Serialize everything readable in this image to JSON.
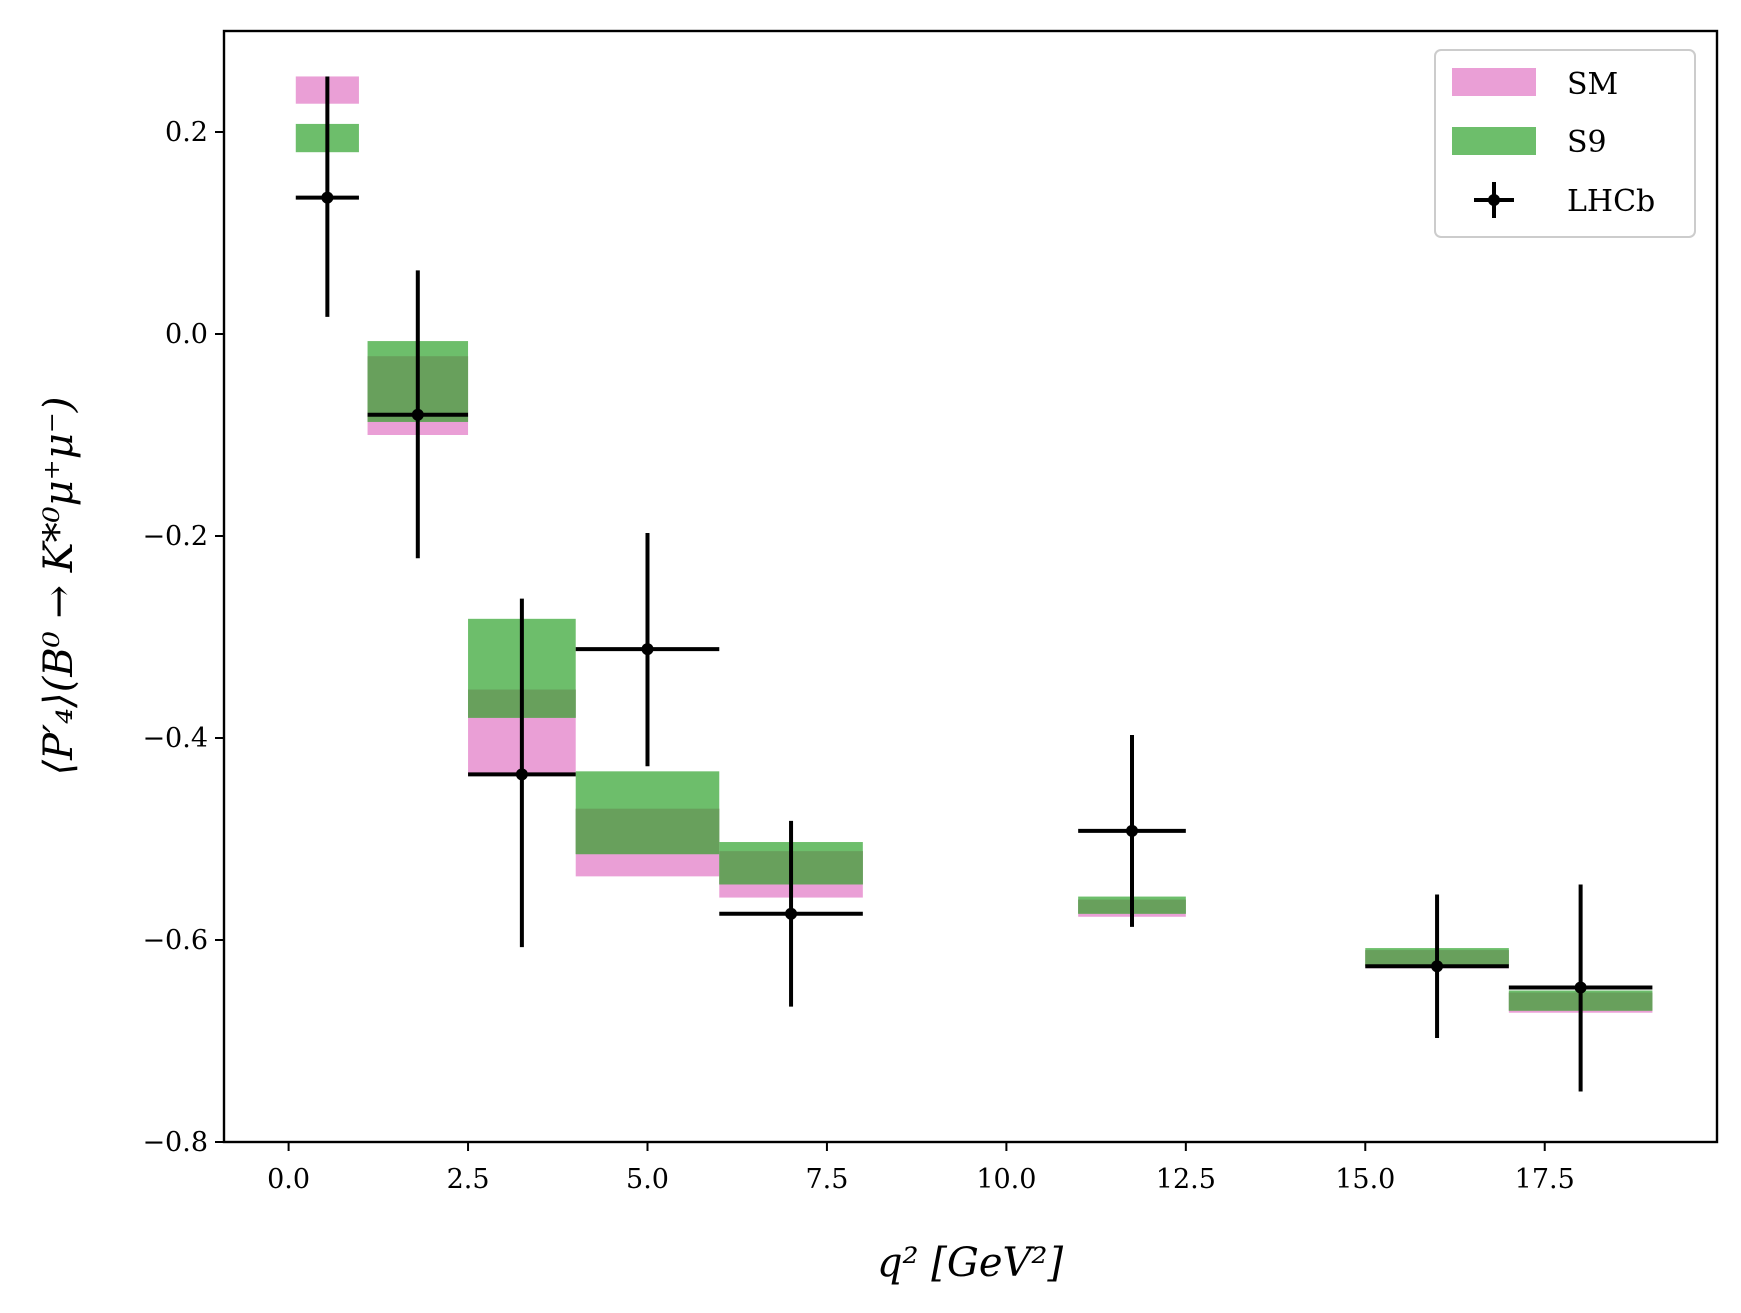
{
  "chart_data": {
    "type": "bar",
    "title": "",
    "xlabel": "q² [GeV²]",
    "ylabel": "⟨P′₄⟩(B⁰ → K*⁰μ⁺μ⁻)",
    "xlim": [
      -0.9,
      19.9
    ],
    "ylim": [
      -0.8,
      0.3
    ],
    "xticks": [
      0.0,
      2.5,
      5.0,
      7.5,
      10.0,
      12.5,
      15.0,
      17.5
    ],
    "xtick_labels": [
      "0.0",
      "2.5",
      "5.0",
      "7.5",
      "10.0",
      "12.5",
      "15.0",
      "17.5"
    ],
    "yticks": [
      -0.8,
      -0.6,
      -0.4,
      -0.2,
      0.0,
      0.2
    ],
    "ytick_labels": [
      "−0.8",
      "−0.6",
      "−0.4",
      "−0.2",
      "0.0",
      "0.2"
    ],
    "legend_position": "top-right",
    "colors": {
      "SM": "#ea9fd6",
      "S9": "#6dbe6b",
      "overlap": "#68a05c",
      "LHCb": "#000000"
    },
    "bins": [
      {
        "x_low": 0.1,
        "x_high": 0.98,
        "sm_low": 0.228,
        "sm_high": 0.255,
        "s9_low": 0.18,
        "s9_high": 0.208
      },
      {
        "x_low": 1.1,
        "x_high": 2.5,
        "sm_low": -0.1,
        "sm_high": -0.022,
        "s9_low": -0.087,
        "s9_high": -0.007
      },
      {
        "x_low": 2.5,
        "x_high": 4.0,
        "sm_low": -0.437,
        "sm_high": -0.352,
        "s9_low": -0.38,
        "s9_high": -0.282
      },
      {
        "x_low": 4.0,
        "x_high": 6.0,
        "sm_low": -0.537,
        "sm_high": -0.47,
        "s9_low": -0.515,
        "s9_high": -0.433
      },
      {
        "x_low": 6.0,
        "x_high": 8.0,
        "sm_low": -0.558,
        "sm_high": -0.512,
        "s9_low": -0.545,
        "s9_high": -0.503
      },
      {
        "x_low": 11.0,
        "x_high": 12.5,
        "sm_low": -0.577,
        "sm_high": -0.56,
        "s9_low": -0.574,
        "s9_high": -0.557
      },
      {
        "x_low": 15.0,
        "x_high": 17.0,
        "sm_low": -0.628,
        "sm_high": -0.61,
        "s9_low": -0.626,
        "s9_high": -0.608
      },
      {
        "x_low": 17.0,
        "x_high": 19.0,
        "sm_low": -0.672,
        "sm_high": -0.652,
        "s9_low": -0.67,
        "s9_high": -0.65
      }
    ],
    "series": [
      {
        "name": "LHCb",
        "points": [
          {
            "x": 0.54,
            "x_err": 0.44,
            "y": 0.135,
            "y_low": 0.017,
            "y_high": 0.255
          },
          {
            "x": 1.8,
            "x_err": 0.7,
            "y": -0.08,
            "y_low": -0.222,
            "y_high": 0.063
          },
          {
            "x": 3.25,
            "x_err": 0.75,
            "y": -0.436,
            "y_low": -0.607,
            "y_high": -0.262
          },
          {
            "x": 5.0,
            "x_err": 1.0,
            "y": -0.312,
            "y_low": -0.428,
            "y_high": -0.197
          },
          {
            "x": 7.0,
            "x_err": 1.0,
            "y": -0.574,
            "y_low": -0.666,
            "y_high": -0.482
          },
          {
            "x": 11.75,
            "x_err": 0.75,
            "y": -0.492,
            "y_low": -0.587,
            "y_high": -0.397
          },
          {
            "x": 16.0,
            "x_err": 1.0,
            "y": -0.626,
            "y_low": -0.697,
            "y_high": -0.555
          },
          {
            "x": 18.0,
            "x_err": 1.0,
            "y": -0.647,
            "y_low": -0.75,
            "y_high": -0.545
          }
        ]
      }
    ],
    "legend": [
      "SM",
      "S9",
      "LHCb"
    ]
  }
}
